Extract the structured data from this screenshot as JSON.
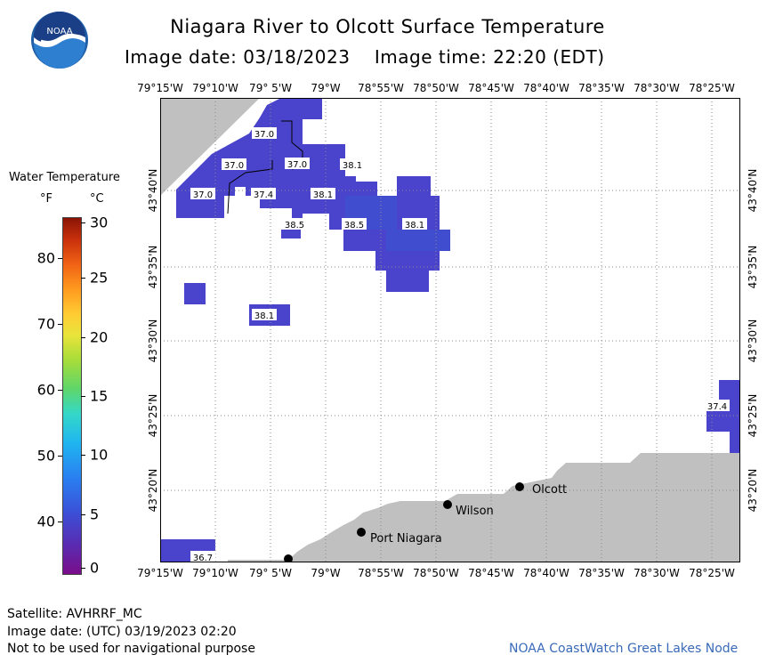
{
  "header": {
    "title": "Niagara River to Olcott Surface Temperature",
    "subtitle": "Image date: 03/18/2023    Image time: 22:20 (EDT)"
  },
  "logo": {
    "text": "NOAA"
  },
  "axes": {
    "lon_labels": [
      "79°15'W",
      "79°10'W",
      "79° 5'W",
      "79°W",
      "78°55'W",
      "78°50'W",
      "78°45'W",
      "78°40'W",
      "78°35'W",
      "78°30'W",
      "78°25'W"
    ],
    "lat_labels": [
      "43°40'N",
      "43°35'N",
      "43°30'N",
      "43°25'N",
      "43°20'N"
    ]
  },
  "legend": {
    "title": "Water Temperature",
    "unit_f": "°F",
    "unit_c": "°C",
    "f_labels": [
      "80",
      "70",
      "60",
      "50",
      "40"
    ],
    "c_labels": [
      "30",
      "25",
      "20",
      "15",
      "10",
      "5",
      "0"
    ]
  },
  "places": [
    {
      "name": "Olcott"
    },
    {
      "name": "Wilson"
    },
    {
      "name": "Port Niagara"
    }
  ],
  "temperature_labels": [
    "37.0",
    "37.0",
    "37.0",
    "37.0",
    "37.4",
    "38.1",
    "38.1",
    "38.5",
    "38.5",
    "38.1",
    "38.1",
    "37.4",
    "36.7"
  ],
  "colors": {
    "water_cell": "#4a44cc",
    "water_cell_alt": "#3f4fcf",
    "land": "#c0c0c0",
    "grid": "#8a8a8a",
    "credit": "#3a6ab8"
  },
  "footer": {
    "satellite": "Satellite: AVHRRF_MC",
    "utc_date": "Image date: (UTC) 03/19/2023  02:20",
    "disclaimer": "Not to be used for navigational purpose",
    "credit": "NOAA CoastWatch Great Lakes Node"
  }
}
